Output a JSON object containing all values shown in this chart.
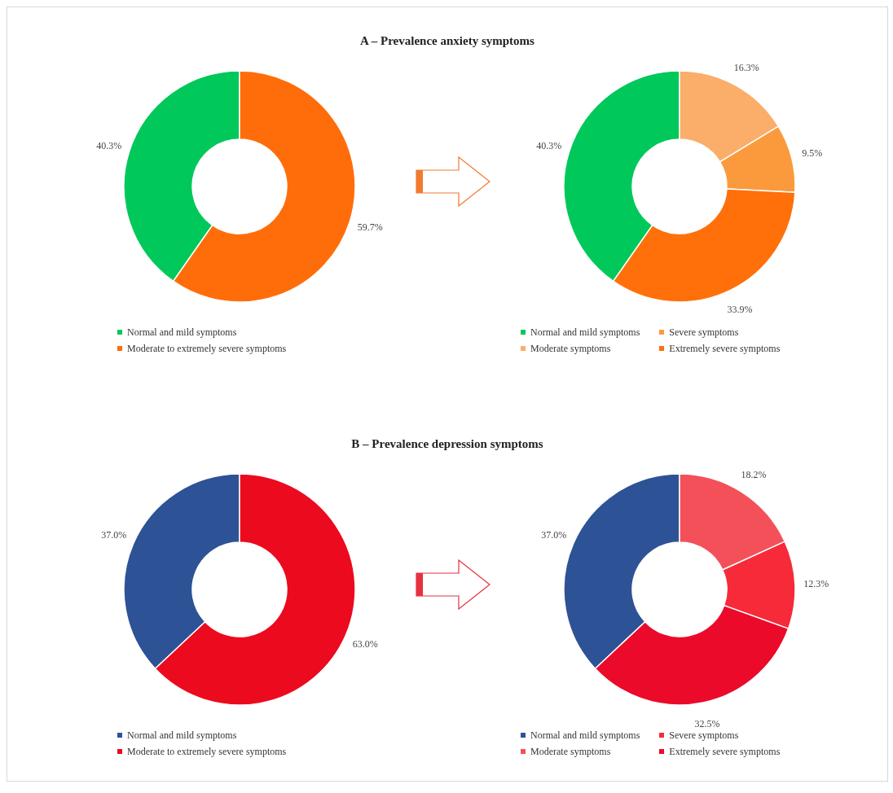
{
  "chart_data": [
    {
      "type": "donut",
      "title": "A – Prevalence anxiety symptoms",
      "categories": [
        "Normal and mild symptoms",
        "Moderate to extremely severe symptoms"
      ],
      "values": [
        40.3,
        59.7
      ],
      "colors": [
        "#00c85a",
        "#ff6d0a"
      ],
      "value_labels": [
        "40.3%",
        "59.7%"
      ],
      "legend": "bottom"
    },
    {
      "type": "donut",
      "categories": [
        "Normal and mild symptoms",
        "Moderate symptoms",
        "Severe symptoms",
        "Extremely severe symptoms"
      ],
      "values": [
        40.3,
        16.3,
        9.5,
        33.9
      ],
      "colors": [
        "#00c85a",
        "#fbad6a",
        "#fb9a3c",
        "#ff700a"
      ],
      "value_labels": [
        "40.3%",
        "16.3%",
        "9.5%",
        "33.9%"
      ],
      "legend": "bottom"
    },
    {
      "type": "donut",
      "title": "B – Prevalence depression symptoms",
      "categories": [
        "Normal and mild symptoms",
        "Moderate to extremely severe symptoms"
      ],
      "values": [
        37.0,
        63.0
      ],
      "colors": [
        "#2d5296",
        "#ec0a1e"
      ],
      "value_labels": [
        "37.0%",
        "63.0%"
      ],
      "legend": "bottom"
    },
    {
      "type": "donut",
      "categories": [
        "Normal and mild symptoms",
        "Moderate symptoms",
        "Severe symptoms",
        "Extremely severe symptoms"
      ],
      "values": [
        37.0,
        18.2,
        12.3,
        32.5
      ],
      "colors": [
        "#2d5296",
        "#f4505a",
        "#f72a3a",
        "#ec0a2a"
      ],
      "value_labels": [
        "37.0%",
        "18.2%",
        "12.3%",
        "32.5%"
      ],
      "legend": "bottom"
    }
  ]
}
